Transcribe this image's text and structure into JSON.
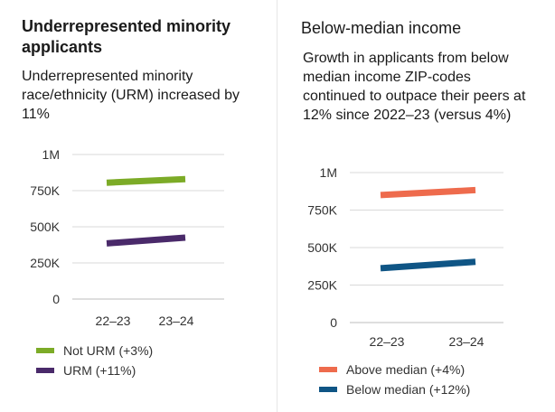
{
  "chart_data": [
    {
      "type": "line",
      "title": "Underrepresented minority applicants",
      "subtitle": "Underrepresented minority race/ethnicity (URM) increased by 11%",
      "categories": [
        "22–23",
        "23–24"
      ],
      "series": [
        {
          "name": "Not URM (+3%)",
          "values": [
            805000,
            830000
          ],
          "color": "#7cab27"
        },
        {
          "name": "URM (+11%)",
          "values": [
            385000,
            425000
          ],
          "color": "#4a2a6a"
        }
      ],
      "yticks": [
        0,
        250000,
        500000,
        750000,
        1000000
      ],
      "ytick_labels": [
        "0",
        "250K",
        "500K",
        "750K",
        "1M"
      ],
      "ylim": [
        0,
        1000000
      ],
      "legend_position": "bottom-left"
    },
    {
      "type": "line",
      "title": "Below-median income",
      "subtitle": "Growth in applicants from below median income ZIP-codes continued to outpace their peers at 12% since 2022–23 (versus 4%)",
      "categories": [
        "22–23",
        "23–24"
      ],
      "series": [
        {
          "name": "Above median (+4%)",
          "values": [
            850000,
            883000
          ],
          "color": "#ee6b4d"
        },
        {
          "name": "Below median (+12%)",
          "values": [
            362000,
            405000
          ],
          "color": "#0f5585"
        }
      ],
      "yticks": [
        0,
        250000,
        500000,
        750000,
        1000000
      ],
      "ytick_labels": [
        "0",
        "250K",
        "500K",
        "750K",
        "1M"
      ],
      "ylim": [
        0,
        1000000
      ],
      "legend_position": "bottom-left"
    }
  ]
}
